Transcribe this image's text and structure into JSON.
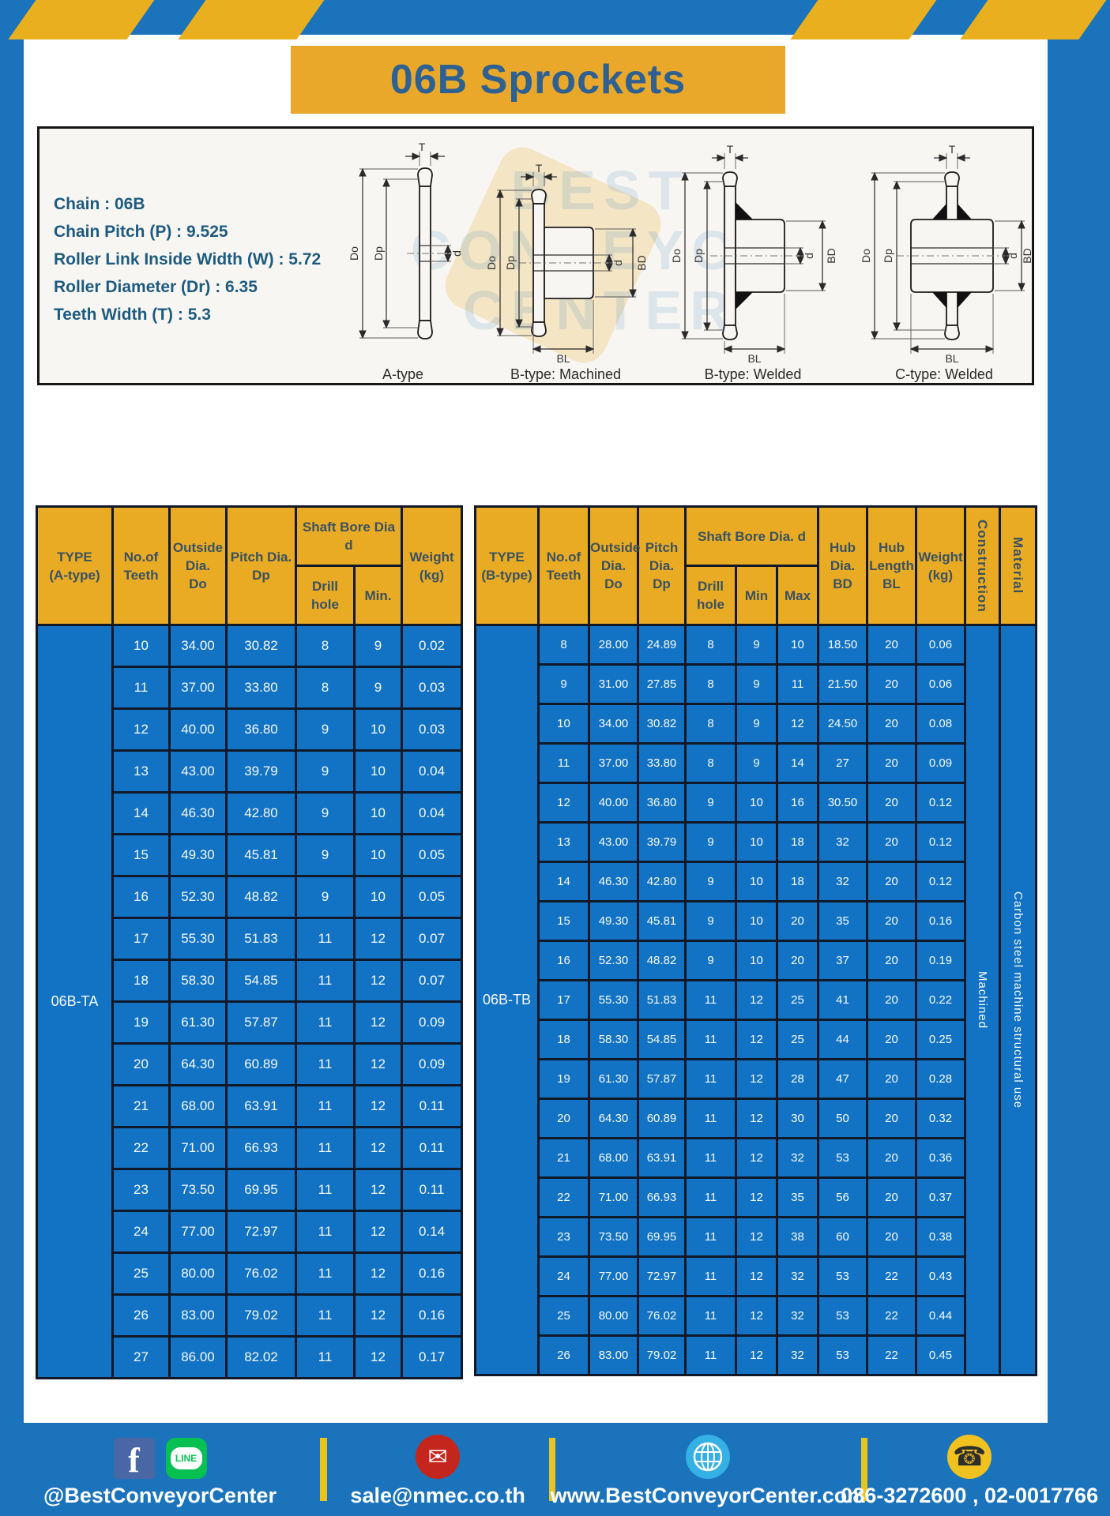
{
  "page": {
    "title": "06B Sprockets"
  },
  "specs": {
    "lines": [
      "Chain : 06B",
      "Chain Pitch (P) : 9.525",
      "Roller Link Inside Width (W) : 5.72",
      "Roller Diameter (Dr) : 6.35",
      "Teeth Width (T) : 5.3"
    ]
  },
  "watermark": {
    "line1": "BEST",
    "line2": "CONVEYOR",
    "line3": "CENTER"
  },
  "diagrams": {
    "labels": [
      "A-type",
      "B-type: Machined",
      "B-type: Welded",
      "C-type: Welded"
    ],
    "dims": {
      "t": "T",
      "dia_o": "Do",
      "dia_p": "Dp",
      "d": "d",
      "bd": "BD",
      "bl": "BL"
    }
  },
  "left_table": {
    "header": {
      "type": "TYPE\n(A-type)",
      "teeth": "No.of\nTeeth",
      "outside": "Outside\nDia.\nDo",
      "pitch": "Pitch Dia.\nDp",
      "shaft_bore": "Shaft Bore Dia d",
      "drill": "Drill hole",
      "min": "Min.",
      "weight": "Weight\n(kg)"
    },
    "type_label": "06B-TA",
    "rows": [
      [
        "10",
        "34.00",
        "30.82",
        "8",
        "9",
        "0.02"
      ],
      [
        "11",
        "37.00",
        "33.80",
        "8",
        "9",
        "0.03"
      ],
      [
        "12",
        "40.00",
        "36.80",
        "9",
        "10",
        "0.03"
      ],
      [
        "13",
        "43.00",
        "39.79",
        "9",
        "10",
        "0.04"
      ],
      [
        "14",
        "46.30",
        "42.80",
        "9",
        "10",
        "0.04"
      ],
      [
        "15",
        "49.30",
        "45.81",
        "9",
        "10",
        "0.05"
      ],
      [
        "16",
        "52.30",
        "48.82",
        "9",
        "10",
        "0.05"
      ],
      [
        "17",
        "55.30",
        "51.83",
        "11",
        "12",
        "0.07"
      ],
      [
        "18",
        "58.30",
        "54.85",
        "11",
        "12",
        "0.07"
      ],
      [
        "19",
        "61.30",
        "57.87",
        "11",
        "12",
        "0.09"
      ],
      [
        "20",
        "64.30",
        "60.89",
        "11",
        "12",
        "0.09"
      ],
      [
        "21",
        "68.00",
        "63.91",
        "11",
        "12",
        "0.11"
      ],
      [
        "22",
        "71.00",
        "66.93",
        "11",
        "12",
        "0.11"
      ],
      [
        "23",
        "73.50",
        "69.95",
        "11",
        "12",
        "0.11"
      ],
      [
        "24",
        "77.00",
        "72.97",
        "11",
        "12",
        "0.14"
      ],
      [
        "25",
        "80.00",
        "76.02",
        "11",
        "12",
        "0.16"
      ],
      [
        "26",
        "83.00",
        "79.02",
        "11",
        "12",
        "0.16"
      ],
      [
        "27",
        "86.00",
        "82.02",
        "11",
        "12",
        "0.17"
      ]
    ]
  },
  "right_table": {
    "header": {
      "type": "TYPE\n(B-type)",
      "teeth": "No.of\nTeeth",
      "outside": "Outside\nDia.\nDo",
      "pitch": "Pitch\nDia.\nDp",
      "shaft_bore": "Shaft Bore Dia. d",
      "drill": "Drill hole",
      "min": "Min",
      "max": "Max",
      "hub_dia": "Hub\nDia.\nBD",
      "hub_len": "Hub\nLength\nBL",
      "weight": "Weight\n(kg)",
      "construction": "Construction",
      "material": "Material"
    },
    "type_label": "06B-TB",
    "construction_value": "Machined",
    "material_value": "Carbon  steel  machine  structural  use",
    "rows": [
      [
        "8",
        "28.00",
        "24.89",
        "8",
        "9",
        "10",
        "18.50",
        "20",
        "0.06"
      ],
      [
        "9",
        "31.00",
        "27.85",
        "8",
        "9",
        "11",
        "21.50",
        "20",
        "0.06"
      ],
      [
        "10",
        "34.00",
        "30.82",
        "8",
        "9",
        "12",
        "24.50",
        "20",
        "0.08"
      ],
      [
        "11",
        "37.00",
        "33.80",
        "8",
        "9",
        "14",
        "27",
        "20",
        "0.09"
      ],
      [
        "12",
        "40.00",
        "36.80",
        "9",
        "10",
        "16",
        "30.50",
        "20",
        "0.12"
      ],
      [
        "13",
        "43.00",
        "39.79",
        "9",
        "10",
        "18",
        "32",
        "20",
        "0.12"
      ],
      [
        "14",
        "46.30",
        "42.80",
        "9",
        "10",
        "18",
        "32",
        "20",
        "0.12"
      ],
      [
        "15",
        "49.30",
        "45.81",
        "9",
        "10",
        "20",
        "35",
        "20",
        "0.16"
      ],
      [
        "16",
        "52.30",
        "48.82",
        "9",
        "10",
        "20",
        "37",
        "20",
        "0.19"
      ],
      [
        "17",
        "55.30",
        "51.83",
        "11",
        "12",
        "25",
        "41",
        "20",
        "0.22"
      ],
      [
        "18",
        "58.30",
        "54.85",
        "11",
        "12",
        "25",
        "44",
        "20",
        "0.25"
      ],
      [
        "19",
        "61.30",
        "57.87",
        "11",
        "12",
        "28",
        "47",
        "20",
        "0.28"
      ],
      [
        "20",
        "64.30",
        "60.89",
        "11",
        "12",
        "30",
        "50",
        "20",
        "0.32"
      ],
      [
        "21",
        "68.00",
        "63.91",
        "11",
        "12",
        "32",
        "53",
        "20",
        "0.36"
      ],
      [
        "22",
        "71.00",
        "66.93",
        "11",
        "12",
        "35",
        "56",
        "20",
        "0.37"
      ],
      [
        "23",
        "73.50",
        "69.95",
        "11",
        "12",
        "38",
        "60",
        "20",
        "0.38"
      ],
      [
        "24",
        "77.00",
        "72.97",
        "11",
        "12",
        "32",
        "53",
        "22",
        "0.43"
      ],
      [
        "25",
        "80.00",
        "76.02",
        "11",
        "12",
        "32",
        "53",
        "22",
        "0.44"
      ],
      [
        "26",
        "83.00",
        "79.02",
        "11",
        "12",
        "32",
        "53",
        "22",
        "0.45"
      ]
    ]
  },
  "footer": {
    "social_text": "@BestConveyorCenter",
    "email_text": "sale@nmec.co.th",
    "web_text": "www.BestConveyorCenter.com",
    "phone_text": "086-3272600 , 02-0017766",
    "icon_glyphs": {
      "facebook": "f",
      "line": "LINE",
      "mail": "✉",
      "phone": "☎"
    }
  }
}
